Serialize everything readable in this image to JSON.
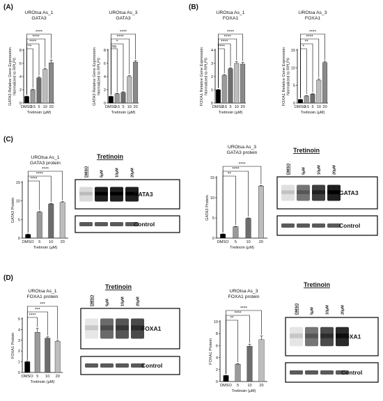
{
  "panels": {
    "A": "(A)",
    "B": "(B)",
    "C": "(C)",
    "D": "(D)"
  },
  "blot": {
    "treatment_label": "Tretinoin",
    "lanes": [
      "DMSO",
      "5μM",
      "10μM",
      "20μM"
    ],
    "gata3_band": "GATA3",
    "foxa1_band": "FOXA1",
    "control_band": "Control"
  },
  "chart_data": [
    {
      "id": "a1",
      "type": "bar",
      "panel": "A",
      "title_lines": [
        "UROtsa As_1",
        "GATA3"
      ],
      "ylabel_lines": [
        "GATA3 Relative Gene Expression",
        "Normalized to RPLP0"
      ],
      "xlabel": "Tretinoin (μM)",
      "categories": [
        "DMSO",
        "2.5",
        "5",
        "10",
        "20"
      ],
      "values": [
        1.0,
        2.0,
        3.8,
        5.1,
        6.1
      ],
      "errors": [
        0.05,
        0.1,
        0.15,
        0.15,
        0.4
      ],
      "bar_colors": [
        "#000000",
        "#9a9a9a",
        "#6d6d6d",
        "#bdbdbd",
        "#8a8a8a"
      ],
      "ylim": [
        0,
        8
      ],
      "yticks": [
        0,
        2,
        4,
        6,
        8
      ],
      "comparisons": [
        {
          "to": "2.5",
          "label": "**"
        },
        {
          "to": "5",
          "label": "****"
        },
        {
          "to": "10",
          "label": "****"
        },
        {
          "to": "20",
          "label": "****"
        }
      ]
    },
    {
      "id": "a3",
      "type": "bar",
      "panel": "A",
      "title_lines": [
        "UROtsa As_3",
        "GATA3"
      ],
      "ylabel_lines": [
        "GATA3 Relative Gene Expression",
        "Normalized to RPLP0"
      ],
      "xlabel": "Tretinoin (μM)",
      "categories": [
        "DMSO",
        "2.5",
        "5",
        "10",
        "20"
      ],
      "values": [
        1.0,
        1.4,
        1.6,
        4.0,
        6.2
      ],
      "errors": [
        0.05,
        0.08,
        0.1,
        0.15,
        0.2
      ],
      "bar_colors": [
        "#000000",
        "#9a9a9a",
        "#6d6d6d",
        "#bdbdbd",
        "#8a8a8a"
      ],
      "ylim": [
        0,
        8
      ],
      "yticks": [
        0,
        2,
        4,
        6,
        8
      ],
      "comparisons": [
        {
          "to": "2.5",
          "label": "ns"
        },
        {
          "to": "5",
          "label": "*"
        },
        {
          "to": "10",
          "label": "****"
        },
        {
          "to": "20",
          "label": "****"
        }
      ]
    },
    {
      "id": "b1",
      "type": "bar",
      "panel": "B",
      "title_lines": [
        "UROtsa As_1",
        "FOXA1"
      ],
      "ylabel_lines": [
        "FOXA1 Relative Gene Expression",
        "Normalized to RPLP0"
      ],
      "xlabel": "Tretinoin (μM)",
      "categories": [
        "DMSO",
        "2.5",
        "5",
        "10",
        "20"
      ],
      "values": [
        1.0,
        2.1,
        2.6,
        3.0,
        2.95
      ],
      "errors": [
        0.03,
        0.06,
        0.07,
        0.12,
        0.12
      ],
      "bar_colors": [
        "#000000",
        "#9a9a9a",
        "#6d6d6d",
        "#bdbdbd",
        "#8a8a8a"
      ],
      "ylim": [
        0,
        4
      ],
      "yticks": [
        0,
        1,
        2,
        3,
        4
      ],
      "comparisons": [
        {
          "to": "2.5",
          "label": "****"
        },
        {
          "to": "5",
          "label": "****"
        },
        {
          "to": "10",
          "label": "****"
        },
        {
          "to": "20",
          "label": "****"
        }
      ]
    },
    {
      "id": "b3",
      "type": "bar",
      "panel": "B",
      "title_lines": [
        "UROtsa As_3",
        "FOXA1"
      ],
      "ylabel_lines": [
        "FOXA1 Relative Gene Expression",
        "Normalized to RPLP0"
      ],
      "xlabel": "Tretinoin (μM)",
      "categories": [
        "DMSO",
        "2.5",
        "5",
        "10",
        "20"
      ],
      "values": [
        1.0,
        2.0,
        2.5,
        6.5,
        11.5
      ],
      "errors": [
        0.05,
        0.1,
        0.15,
        0.3,
        0.35
      ],
      "bar_colors": [
        "#000000",
        "#9a9a9a",
        "#6d6d6d",
        "#bdbdbd",
        "#8a8a8a"
      ],
      "ylim": [
        0,
        15
      ],
      "yticks": [
        0,
        5,
        10,
        15
      ],
      "comparisons": [
        {
          "to": "2.5",
          "label": "*"
        },
        {
          "to": "5",
          "label": "**"
        },
        {
          "to": "10",
          "label": "****"
        },
        {
          "to": "20",
          "label": "****"
        }
      ]
    },
    {
      "id": "c1",
      "type": "bar",
      "panel": "C",
      "title_lines": [
        "UROtsa As_1",
        "GATA3 protein"
      ],
      "ylabel_lines": [
        "GATA3 Protein"
      ],
      "xlabel": "Tretinoin (μM)",
      "categories": [
        "DMSO",
        "5",
        "10",
        "20"
      ],
      "values": [
        1.0,
        7.0,
        9.2,
        9.6
      ],
      "errors": [
        0.1,
        0.15,
        0.15,
        0.2
      ],
      "bar_colors": [
        "#000000",
        "#9a9a9a",
        "#6d6d6d",
        "#bdbdbd"
      ],
      "ylim": [
        0,
        15
      ],
      "yticks": [
        0,
        5,
        10,
        15
      ],
      "comparisons": [
        {
          "to": "5",
          "label": "****"
        },
        {
          "to": "10",
          "label": "****"
        },
        {
          "to": "20",
          "label": "****"
        }
      ]
    },
    {
      "id": "c3",
      "type": "bar",
      "panel": "C",
      "title_lines": [
        "UROtsa As_3",
        "GATA3 protein"
      ],
      "ylabel_lines": [
        "GATA3 Protein"
      ],
      "xlabel": "Tretinoin (μM)",
      "categories": [
        "DMSO",
        "5",
        "10",
        "20"
      ],
      "values": [
        1.0,
        2.8,
        4.9,
        12.9
      ],
      "errors": [
        0.05,
        0.1,
        0.1,
        0.15
      ],
      "bar_colors": [
        "#000000",
        "#9a9a9a",
        "#6d6d6d",
        "#bdbdbd"
      ],
      "ylim": [
        0,
        15
      ],
      "yticks": [
        0,
        5,
        10,
        15
      ],
      "comparisons": [
        {
          "to": "5",
          "label": "**"
        },
        {
          "to": "10",
          "label": "****"
        },
        {
          "to": "20",
          "label": "****"
        }
      ]
    },
    {
      "id": "d1",
      "type": "bar",
      "panel": "D",
      "title_lines": [
        "UROtsa As_1",
        "FOXA1 protein"
      ],
      "ylabel_lines": [
        "FOXA1 Protein"
      ],
      "xlabel": "Tretinoin (μM)",
      "categories": [
        "DMSO",
        "5",
        "10",
        "20"
      ],
      "values": [
        1.0,
        3.75,
        3.2,
        2.9
      ],
      "errors": [
        0.05,
        0.35,
        0.12,
        0.1
      ],
      "bar_colors": [
        "#000000",
        "#9a9a9a",
        "#6d6d6d",
        "#bdbdbd"
      ],
      "ylim": [
        0,
        5
      ],
      "yticks": [
        0,
        1,
        2,
        3,
        4,
        5
      ],
      "comparisons": [
        {
          "to": "5",
          "label": "****"
        },
        {
          "to": "10",
          "label": "***"
        },
        {
          "to": "20",
          "label": "***"
        }
      ]
    },
    {
      "id": "d3",
      "type": "bar",
      "panel": "D",
      "title_lines": [
        "UROtsa As_3",
        "FOXA1 protein"
      ],
      "ylabel_lines": [
        "FOXA1 Protein"
      ],
      "xlabel": "Tretinoin (μM)",
      "categories": [
        "DMSO",
        "5",
        "10",
        "20"
      ],
      "values": [
        1.0,
        2.9,
        5.9,
        7.0
      ],
      "errors": [
        0.05,
        0.1,
        0.3,
        0.6
      ],
      "bar_colors": [
        "#000000",
        "#9a9a9a",
        "#6d6d6d",
        "#bdbdbd"
      ],
      "ylim": [
        0,
        10
      ],
      "yticks": [
        0,
        2,
        4,
        6,
        8,
        10
      ],
      "comparisons": [
        {
          "to": "5",
          "label": "**"
        },
        {
          "to": "10",
          "label": "****"
        },
        {
          "to": "20",
          "label": "****"
        }
      ]
    }
  ]
}
